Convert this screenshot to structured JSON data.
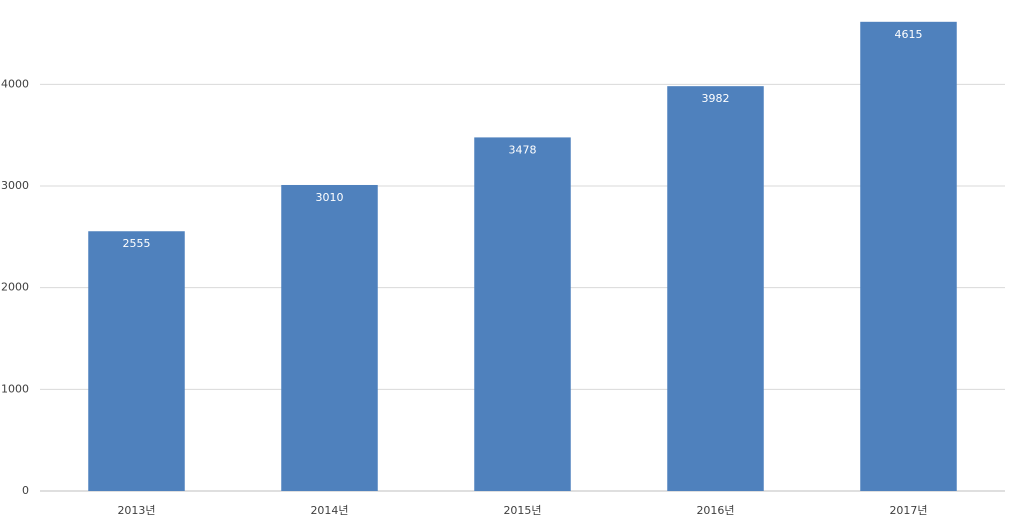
{
  "chart_data": {
    "type": "bar",
    "categories": [
      "2013년",
      "2014년",
      "2015년",
      "2016년",
      "2017년"
    ],
    "values": [
      2555,
      3010,
      3478,
      3982,
      4615
    ],
    "color": "#4f81bd",
    "ylim": [
      0,
      4800
    ],
    "yticks": [
      0,
      1000,
      2000,
      3000,
      4000
    ],
    "grid": true
  }
}
